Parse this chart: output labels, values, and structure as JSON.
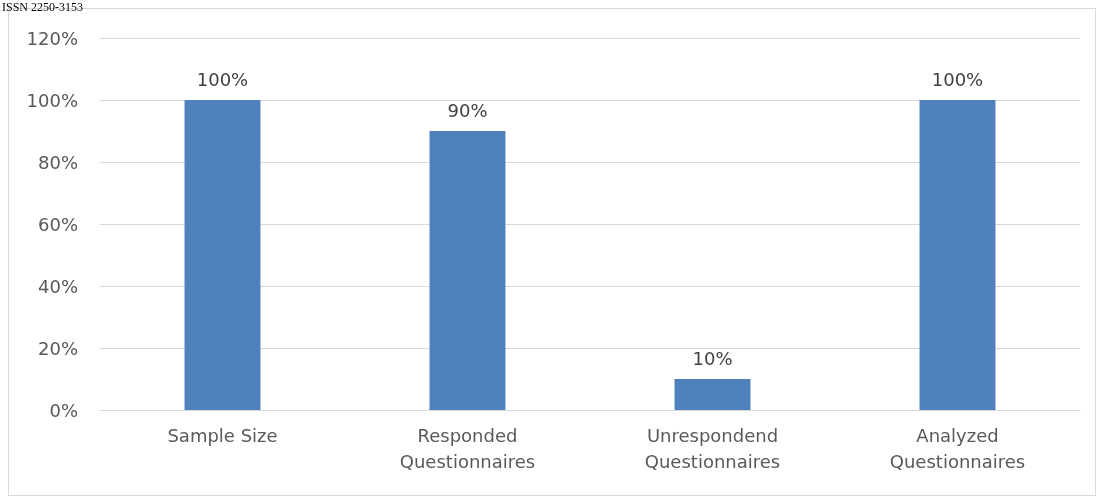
{
  "chart_data": {
    "type": "bar",
    "categories": [
      "Sample Size",
      "Responded Questionnaires",
      "Unrespondend Questionnaires",
      "Analyzed Questionnaires"
    ],
    "values": [
      100,
      90,
      10,
      100
    ],
    "color": "#4f81bd",
    "ylim": [
      0,
      120
    ],
    "yticks": [
      {
        "value": 0,
        "label": "0%"
      },
      {
        "value": 20,
        "label": "20%"
      },
      {
        "value": 40,
        "label": "40%"
      },
      {
        "value": 60,
        "label": "60%"
      },
      {
        "value": 80,
        "label": "80%"
      },
      {
        "value": 100,
        "label": "100%"
      },
      {
        "value": 120,
        "label": "120%"
      }
    ],
    "grid": "y",
    "value_labels": [
      "100%",
      "90%",
      "10%",
      "100%"
    ],
    "annotations": [
      "ISSN 2250-3153"
    ]
  }
}
